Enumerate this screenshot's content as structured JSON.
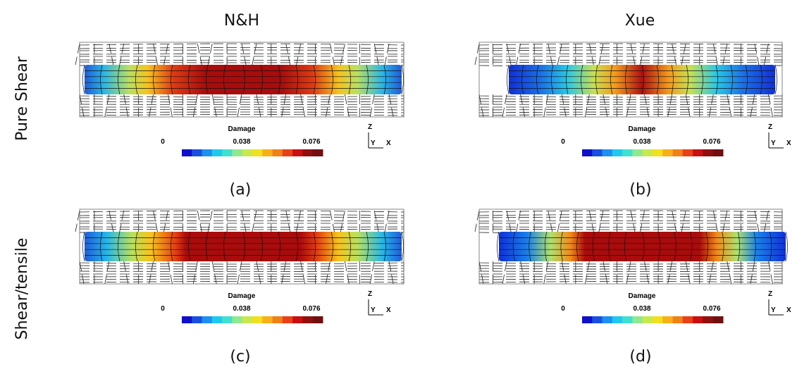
{
  "column_headers": [
    "N&H",
    "Xue"
  ],
  "row_labels": [
    "Pure Shear",
    "Shear/tensile"
  ],
  "panels": [
    {
      "caption": "(a)",
      "legend": {
        "title": "Damage",
        "ticks": [
          "0",
          "0.038",
          "0.076"
        ]
      },
      "axes": {
        "z": "Z",
        "y": "Y",
        "x": "X"
      }
    },
    {
      "caption": "(b)",
      "legend": {
        "title": "Damage",
        "ticks": [
          "0",
          "0.038",
          "0.076"
        ]
      },
      "axes": {
        "z": "Z",
        "y": "Y",
        "x": "X"
      }
    },
    {
      "caption": "(c)",
      "legend": {
        "title": "Damage",
        "ticks": [
          "0",
          "0.038",
          "0.076"
        ]
      },
      "axes": {
        "z": "Z",
        "y": "Y",
        "x": "X"
      }
    },
    {
      "caption": "(d)",
      "legend": {
        "title": "Damage",
        "ticks": [
          "0",
          "0.038",
          "0.076"
        ]
      },
      "axes": {
        "z": "Z",
        "y": "Y",
        "x": "X"
      }
    }
  ]
}
